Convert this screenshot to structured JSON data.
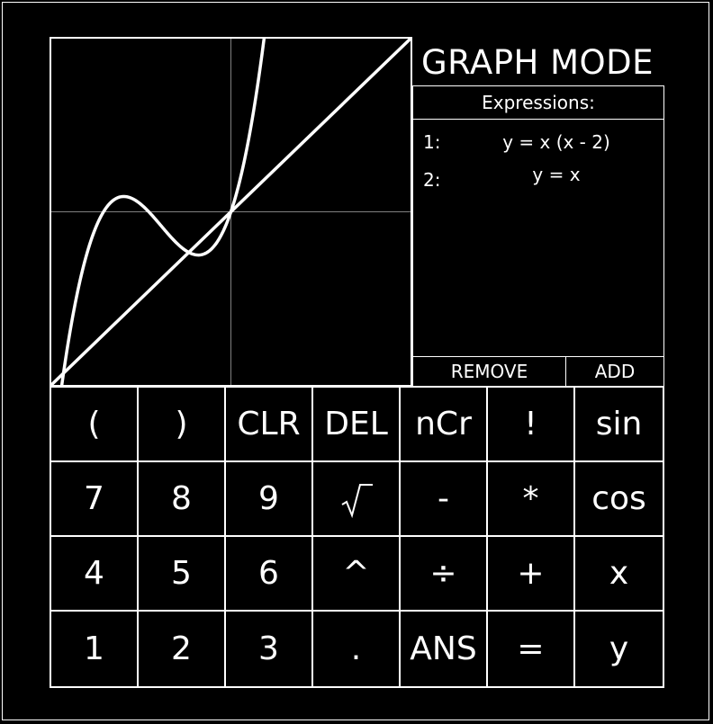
{
  "title": "GRAPH MODE",
  "expressions": {
    "header": "Expressions:",
    "items": [
      {
        "num": "1:",
        "text": "y = x (x - 2)"
      },
      {
        "num": "2:",
        "text": "y = x"
      }
    ],
    "remove_label": "REMOVE",
    "add_label": "ADD"
  },
  "keypad": {
    "rows": [
      [
        {
          "label": "(",
          "name": "open-paren"
        },
        {
          "label": ")",
          "name": "close-paren"
        },
        {
          "label": "CLR",
          "name": "clear"
        },
        {
          "label": "DEL",
          "name": "delete"
        },
        {
          "label": "nCr",
          "name": "ncr"
        },
        {
          "label": "!",
          "name": "factorial"
        },
        {
          "label": "sin",
          "name": "sin"
        }
      ],
      [
        {
          "label": "7",
          "name": "digit-7"
        },
        {
          "label": "8",
          "name": "digit-8"
        },
        {
          "label": "9",
          "name": "digit-9"
        },
        {
          "label": "",
          "name": "sqrt",
          "icon": "square-root-icon"
        },
        {
          "label": "-",
          "name": "minus"
        },
        {
          "label": "*",
          "name": "multiply"
        },
        {
          "label": "cos",
          "name": "cos"
        }
      ],
      [
        {
          "label": "4",
          "name": "digit-4"
        },
        {
          "label": "5",
          "name": "digit-5"
        },
        {
          "label": "6",
          "name": "digit-6"
        },
        {
          "label": "^",
          "name": "power"
        },
        {
          "label": "÷",
          "name": "divide"
        },
        {
          "label": "+",
          "name": "plus"
        },
        {
          "label": "x",
          "name": "variable-x"
        }
      ],
      [
        {
          "label": "1",
          "name": "digit-1"
        },
        {
          "label": "2",
          "name": "digit-2"
        },
        {
          "label": "3",
          "name": "digit-3"
        },
        {
          "label": ".",
          "name": "decimal-point"
        },
        {
          "label": "ANS",
          "name": "answer"
        },
        {
          "label": "=",
          "name": "equals"
        },
        {
          "label": "y",
          "name": "variable-y"
        }
      ]
    ]
  },
  "graph": {
    "xlim": [
      -3,
      3
    ],
    "ylim": [
      -3,
      3
    ],
    "curves": [
      "y = x (x - 2)",
      "y = x"
    ],
    "line_color": "#ffffff",
    "axis_color": "#808080"
  }
}
